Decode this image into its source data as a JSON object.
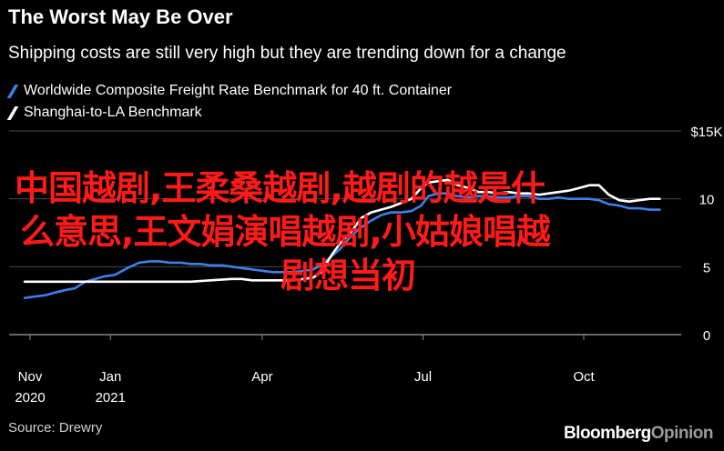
{
  "header": {
    "title": "The Worst May Be Over",
    "subtitle": "Shipping costs are still very high but they are trending down for a change"
  },
  "legend": [
    {
      "label": "Worldwide Composite Freight Rate Benchmark for 40 ft. Container",
      "color": "#3f7fe8"
    },
    {
      "label": "Shanghai-to-LA Benchmark",
      "color": "#ffffff"
    }
  ],
  "footer": {
    "source": "Source: Drewry",
    "brand_main": "Bloomberg",
    "brand_suffix": "Opinion"
  },
  "overlay_text": {
    "line1": "中国越剧,王柔桑越剧,越剧的越是什",
    "line2": "么意思,王文娟演唱越剧,小姑娘唱越",
    "line3": "剧想当初"
  },
  "chart_data": {
    "type": "line",
    "title": "The Worst May Be Over",
    "subtitle": "Shipping costs are still very high but they are trending down for a change",
    "xlabel": "",
    "ylabel": "",
    "ylim": [
      0,
      15
    ],
    "y_ticks": [
      {
        "value": 15,
        "label": "$15K"
      },
      {
        "value": 10,
        "label": "10"
      },
      {
        "value": 5,
        "label": "5"
      },
      {
        "value": 0,
        "label": "0"
      }
    ],
    "x_ticks": [
      {
        "week": 0,
        "label": "Nov",
        "sub": "2020"
      },
      {
        "week": 9,
        "label": "Jan",
        "sub": "2021"
      },
      {
        "week": 26,
        "label": "Apr",
        "sub": ""
      },
      {
        "week": 44,
        "label": "Jul",
        "sub": ""
      },
      {
        "week": 62,
        "label": "Oct",
        "sub": ""
      }
    ],
    "grid": true,
    "legend_position": "top-left",
    "series": [
      {
        "name": "Worldwide Composite Freight Rate Benchmark for 40 ft. Container",
        "color": "#3f7fe8",
        "points": [
          [
            -0.6,
            2.7
          ],
          [
            0.5,
            2.8
          ],
          [
            1.7,
            2.9
          ],
          [
            2.8,
            3.1
          ],
          [
            4.1,
            3.3
          ],
          [
            5.0,
            3.4
          ],
          [
            6.2,
            3.9
          ],
          [
            7.3,
            4.1
          ],
          [
            8.4,
            4.3
          ],
          [
            9.5,
            4.4
          ],
          [
            10.9,
            4.9
          ],
          [
            12.2,
            5.3
          ],
          [
            13.4,
            5.4
          ],
          [
            14.5,
            5.4
          ],
          [
            15.7,
            5.3
          ],
          [
            16.9,
            5.3
          ],
          [
            18.0,
            5.2
          ],
          [
            19.1,
            5.2
          ],
          [
            20.2,
            5.1
          ],
          [
            21.5,
            5.1
          ],
          [
            22.6,
            5.0
          ],
          [
            23.7,
            4.9
          ],
          [
            24.9,
            4.8
          ],
          [
            26.0,
            4.7
          ],
          [
            27.2,
            4.6
          ],
          [
            28.3,
            4.6
          ],
          [
            29.5,
            4.6
          ],
          [
            30.6,
            4.7
          ],
          [
            31.7,
            4.8
          ],
          [
            32.6,
            5.1
          ],
          [
            33.8,
            5.8
          ],
          [
            34.7,
            6.3
          ],
          [
            36.0,
            7.3
          ],
          [
            37.1,
            7.9
          ],
          [
            38.2,
            8.4
          ],
          [
            39.3,
            8.8
          ],
          [
            40.4,
            9.0
          ],
          [
            41.6,
            9.0
          ],
          [
            42.7,
            9.1
          ],
          [
            43.8,
            9.5
          ],
          [
            44.6,
            10.2
          ],
          [
            45.7,
            10.4
          ],
          [
            46.8,
            10.4
          ],
          [
            47.9,
            10.2
          ],
          [
            49.1,
            10.1
          ],
          [
            50.2,
            10.2
          ],
          [
            51.3,
            10.2
          ],
          [
            52.4,
            10.1
          ],
          [
            53.6,
            10.1
          ],
          [
            54.7,
            10.2
          ],
          [
            55.8,
            10.2
          ],
          [
            57.0,
            10.0
          ],
          [
            58.1,
            10.0
          ],
          [
            59.2,
            10.1
          ],
          [
            60.3,
            10.0
          ],
          [
            61.5,
            10.0
          ],
          [
            62.6,
            10.0
          ],
          [
            63.7,
            9.9
          ],
          [
            64.8,
            9.6
          ],
          [
            66.0,
            9.5
          ],
          [
            67.1,
            9.3
          ],
          [
            68.2,
            9.3
          ],
          [
            69.4,
            9.2
          ],
          [
            70.5,
            9.2
          ]
        ]
      },
      {
        "name": "Shanghai-to-LA Benchmark",
        "color": "#ffffff",
        "points": [
          [
            -0.6,
            3.9
          ],
          [
            1.7,
            3.9
          ],
          [
            4.1,
            3.9
          ],
          [
            6.2,
            3.9
          ],
          [
            8.4,
            3.9
          ],
          [
            10.9,
            3.9
          ],
          [
            13.4,
            3.9
          ],
          [
            15.7,
            3.9
          ],
          [
            18.0,
            3.9
          ],
          [
            20.2,
            4.0
          ],
          [
            22.6,
            4.1
          ],
          [
            23.7,
            4.1
          ],
          [
            24.9,
            4.0
          ],
          [
            26.0,
            4.0
          ],
          [
            27.2,
            4.0
          ],
          [
            28.3,
            4.0
          ],
          [
            29.5,
            4.0
          ],
          [
            30.6,
            4.1
          ],
          [
            31.7,
            4.2
          ],
          [
            32.6,
            4.6
          ],
          [
            33.8,
            5.9
          ],
          [
            34.7,
            6.7
          ],
          [
            36.0,
            7.6
          ],
          [
            37.1,
            8.6
          ],
          [
            38.2,
            9.0
          ],
          [
            39.3,
            9.2
          ],
          [
            40.4,
            9.4
          ],
          [
            41.6,
            9.7
          ],
          [
            42.7,
            10.0
          ],
          [
            43.8,
            10.8
          ],
          [
            44.6,
            11.2
          ],
          [
            45.7,
            11.3
          ],
          [
            46.8,
            11.4
          ],
          [
            47.9,
            11.0
          ],
          [
            49.1,
            10.8
          ],
          [
            50.2,
            10.5
          ],
          [
            51.3,
            10.5
          ],
          [
            52.4,
            10.4
          ],
          [
            53.6,
            10.5
          ],
          [
            54.7,
            10.4
          ],
          [
            55.8,
            10.4
          ],
          [
            57.0,
            10.3
          ],
          [
            58.1,
            10.4
          ],
          [
            59.2,
            10.5
          ],
          [
            60.3,
            10.6
          ],
          [
            61.5,
            10.8
          ],
          [
            62.6,
            11.0
          ],
          [
            63.7,
            11.0
          ],
          [
            64.8,
            10.3
          ],
          [
            66.0,
            9.9
          ],
          [
            67.1,
            9.8
          ],
          [
            68.2,
            9.9
          ],
          [
            69.4,
            10.0
          ],
          [
            70.5,
            10.0
          ]
        ]
      }
    ]
  }
}
